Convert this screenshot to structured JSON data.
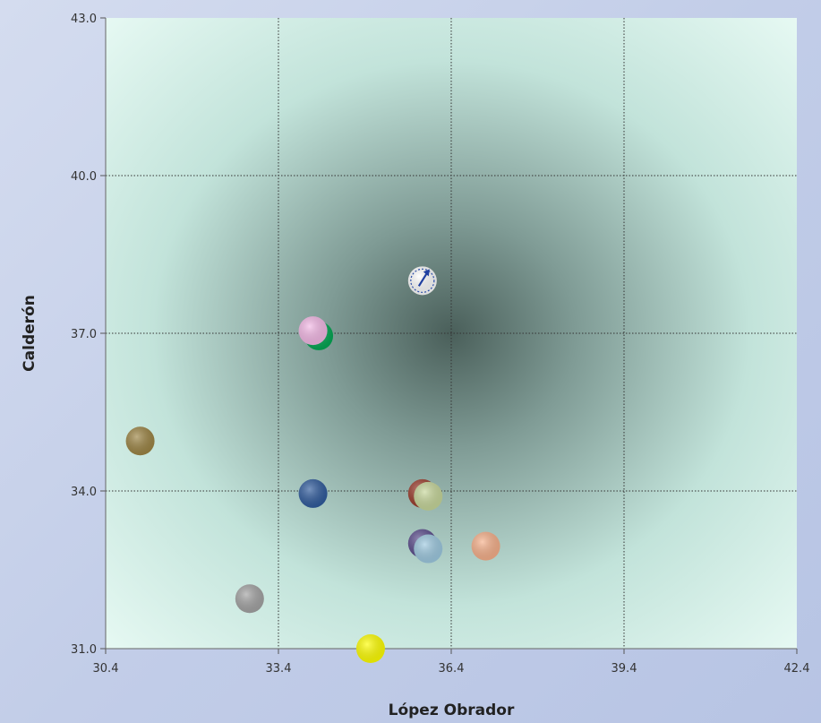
{
  "chart_data": {
    "type": "scatter",
    "xlabel": "López Obrador",
    "ylabel": "Calderón",
    "xlim": [
      30.4,
      42.4
    ],
    "ylim": [
      31.0,
      43.0
    ],
    "x_ticks": [
      "30.4",
      "33.4",
      "36.4",
      "39.4",
      "42.4"
    ],
    "y_ticks": [
      "31.0",
      "34.0",
      "37.0",
      "40.0",
      "43.0"
    ],
    "grid": true,
    "legend": "none",
    "points": [
      {
        "x": 35.9,
        "y": 38.0,
        "color": "#ffffff"
      },
      {
        "x": 34.1,
        "y": 36.95,
        "color": "#00a651"
      },
      {
        "x": 34.0,
        "y": 37.05,
        "color": "#f4b8e6"
      },
      {
        "x": 31.0,
        "y": 34.95,
        "color": "#9c8443"
      },
      {
        "x": 34.0,
        "y": 33.95,
        "color": "#2e5a9c"
      },
      {
        "x": 35.9,
        "y": 33.95,
        "color": "#9a3a2a"
      },
      {
        "x": 36.0,
        "y": 33.9,
        "color": "#c7d79a"
      },
      {
        "x": 35.9,
        "y": 33.0,
        "color": "#5a4b8c"
      },
      {
        "x": 36.0,
        "y": 32.9,
        "color": "#9dc9e0"
      },
      {
        "x": 37.0,
        "y": 32.95,
        "color": "#f7b08a"
      },
      {
        "x": 32.9,
        "y": 31.95,
        "color": "#a3a3a3"
      },
      {
        "x": 35.0,
        "y": 31.0,
        "color": "#ffff00"
      }
    ]
  }
}
